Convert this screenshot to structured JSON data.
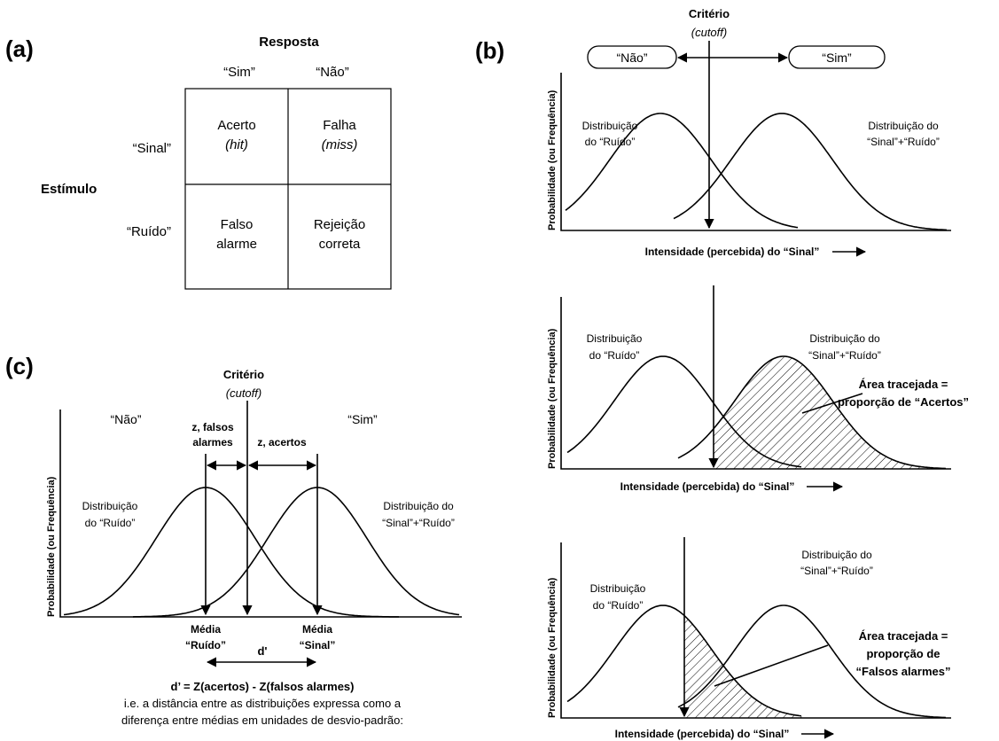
{
  "panel_a": {
    "label": "(a)",
    "resposta": "Resposta",
    "sim": "“Sim”",
    "nao": "“Não”",
    "sinal": "“Sinal”",
    "ruido": "“Ruído”",
    "estimulo": "Estímulo",
    "cell_hit_1": "Acerto",
    "cell_hit_2": "(hit)",
    "cell_miss_1": "Falha",
    "cell_miss_2": "(miss)",
    "cell_fa_1": "Falso",
    "cell_fa_2": "alarme",
    "cell_cr_1": "Rejeição",
    "cell_cr_2": "correta"
  },
  "panel_b": {
    "label": "(b)",
    "criterio": "Critério",
    "cutoff": "(cutoff)",
    "nao_box": "“Não”",
    "sim_box": "“Sim”",
    "ylabel": "Probabilidade (ou Frequência)",
    "xlabel": "Intensidade (percebida) do “Sinal”",
    "noise_1": "Distribuição",
    "noise_2": "do “Ruído”",
    "signal_1": "Distribuição do",
    "signal_2": "“Sinal”+“Ruído”",
    "hits_1": "Área tracejada =",
    "hits_2": "proporção de “Acertos”",
    "fa_1": "Área tracejada =",
    "fa_2": "proporção de",
    "fa_3": "“Falsos alarmes”"
  },
  "panel_c": {
    "label": "(c)",
    "criterio": "Critério",
    "cutoff": "(cutoff)",
    "nao": "“Não”",
    "sim": "“Sim”",
    "ylabel": "Probabilidade (ou Frequência)",
    "z_fa_1": "z, falsos",
    "z_fa_2": "alarmes",
    "z_hits": "z, acertos",
    "noise_1": "Distribuição",
    "noise_2": "do “Ruído”",
    "signal_1": "Distribuição do",
    "signal_2": "“Sinal”+“Ruído”",
    "mean_noise_1": "Média",
    "mean_noise_2": "“Ruído”",
    "mean_signal_1": "Média",
    "mean_signal_2": "“Sinal”",
    "dprime": "d'",
    "formula": "d’ = Z(acertos) - Z(falsos alarmes)",
    "expl_1": "i.e. a distância entre as distribuições expressa como a",
    "expl_2": "diferença entre médias em unidades de desvio-padrão:"
  }
}
